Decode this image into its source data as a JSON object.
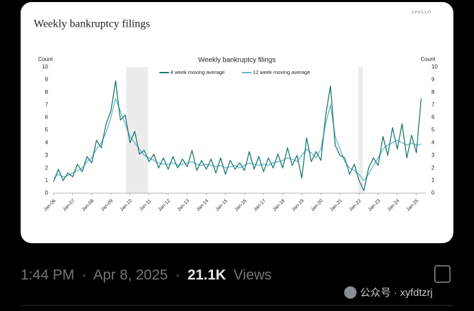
{
  "header": {
    "title": "Weekly bankruptcy filings",
    "brand": "APOLLO"
  },
  "chart_data": {
    "type": "line",
    "title": "Weekly bankruptcy filings",
    "ylabel": "Count",
    "y2label": "Count",
    "x": [
      2006,
      2006.25,
      2006.5,
      2006.75,
      2007,
      2007.25,
      2007.5,
      2007.75,
      2008,
      2008.25,
      2008.5,
      2008.75,
      2009,
      2009.25,
      2009.5,
      2009.75,
      2010,
      2010.25,
      2010.5,
      2010.75,
      2011,
      2011.25,
      2011.5,
      2011.75,
      2012,
      2012.25,
      2012.5,
      2012.75,
      2013,
      2013.25,
      2013.5,
      2013.75,
      2014,
      2014.25,
      2014.5,
      2014.75,
      2015,
      2015.25,
      2015.5,
      2015.75,
      2016,
      2016.25,
      2016.5,
      2016.75,
      2017,
      2017.25,
      2017.5,
      2017.75,
      2018,
      2018.25,
      2018.5,
      2018.75,
      2019,
      2019.25,
      2019.5,
      2019.75,
      2020,
      2020.25,
      2020.5,
      2020.75,
      2021,
      2021.25,
      2021.5,
      2021.75,
      2022,
      2022.25,
      2022.5,
      2022.75,
      2023,
      2023.25,
      2023.5,
      2023.75,
      2024,
      2024.25,
      2024.5,
      2024.75,
      2025,
      2025.25
    ],
    "series": [
      {
        "name": "4 week moving average",
        "color": "#17786b",
        "values": [
          0.9,
          1.9,
          1.0,
          1.6,
          1.3,
          2.3,
          1.7,
          2.9,
          2.4,
          4.2,
          3.6,
          5.5,
          6.5,
          8.9,
          5.8,
          6.2,
          4.0,
          4.9,
          3.1,
          3.4,
          2.5,
          3.1,
          2.0,
          2.8,
          1.9,
          2.9,
          2.0,
          2.7,
          2.1,
          3.4,
          1.8,
          2.6,
          1.9,
          2.7,
          1.6,
          2.8,
          1.5,
          2.6,
          1.9,
          2.4,
          1.8,
          3.3,
          1.9,
          2.9,
          1.7,
          2.8,
          2.0,
          3.1,
          2.0,
          3.6,
          2.2,
          3.0,
          1.2,
          4.4,
          2.5,
          3.3,
          2.6,
          6.2,
          8.5,
          3.8,
          3.0,
          2.8,
          1.5,
          2.3,
          1.0,
          0.2,
          2.0,
          2.8,
          2.2,
          4.5,
          3.0,
          5.2,
          3.5,
          5.5,
          2.8,
          4.6,
          3.2,
          7.5
        ]
      },
      {
        "name": "12 week moving average",
        "color": "#5fb6c9",
        "values": [
          1.2,
          1.5,
          1.3,
          1.4,
          1.6,
          1.8,
          2.0,
          2.5,
          2.8,
          3.5,
          4.0,
          4.8,
          6.0,
          7.5,
          6.5,
          5.5,
          4.5,
          4.0,
          3.5,
          3.0,
          2.8,
          2.6,
          2.4,
          2.3,
          2.3,
          2.4,
          2.2,
          2.3,
          2.4,
          2.5,
          2.3,
          2.2,
          2.3,
          2.2,
          2.1,
          2.2,
          2.0,
          2.1,
          2.2,
          2.0,
          2.2,
          2.4,
          2.3,
          2.2,
          2.3,
          2.2,
          2.4,
          2.5,
          2.6,
          2.8,
          2.7,
          2.5,
          3.0,
          3.5,
          3.2,
          2.8,
          3.5,
          5.5,
          7.0,
          4.5,
          3.5,
          2.5,
          2.0,
          1.8,
          1.5,
          1.0,
          1.5,
          2.2,
          2.8,
          3.5,
          3.8,
          4.0,
          4.2,
          4.0,
          3.8,
          4.0,
          3.8,
          3.9
        ]
      }
    ],
    "shaded_ranges": [
      [
        2009.8,
        2010.95
      ],
      [
        2021.95,
        2022.2
      ]
    ],
    "xlim": [
      2006,
      2025.5
    ],
    "xticks": [
      {
        "value": 2006,
        "label": "Jan-06"
      },
      {
        "value": 2007,
        "label": "Jan-07"
      },
      {
        "value": 2008,
        "label": "Jan-08"
      },
      {
        "value": 2009,
        "label": "Jan-09"
      },
      {
        "value": 2010,
        "label": "Jan-10"
      },
      {
        "value": 2011,
        "label": "Jan-11"
      },
      {
        "value": 2012,
        "label": "Jan-12"
      },
      {
        "value": 2013,
        "label": "Jan-13"
      },
      {
        "value": 2014,
        "label": "Jan-14"
      },
      {
        "value": 2015,
        "label": "Jan-15"
      },
      {
        "value": 2016,
        "label": "Jan-16"
      },
      {
        "value": 2017,
        "label": "Jan-17"
      },
      {
        "value": 2018,
        "label": "Jan-18"
      },
      {
        "value": 2019,
        "label": "Jan-19"
      },
      {
        "value": 2020,
        "label": "Jan-20"
      },
      {
        "value": 2021,
        "label": "Jan-21"
      },
      {
        "value": 2022,
        "label": "Jan-22"
      },
      {
        "value": 2023,
        "label": "Jan-23"
      },
      {
        "value": 2024,
        "label": "Jan-24"
      },
      {
        "value": 2025,
        "label": "Jan-25"
      }
    ],
    "ylim": [
      0,
      10
    ],
    "yticks": [
      0,
      1,
      2,
      3,
      4,
      5,
      6,
      7,
      8,
      9,
      10
    ],
    "y2lim": [
      0,
      10
    ],
    "y2ticks": [
      0,
      1,
      2,
      3,
      4,
      5,
      6,
      7,
      8,
      9,
      10
    ]
  },
  "tweet": {
    "time": "1:44 PM",
    "separator": "·",
    "date": "Apr 8, 2025",
    "views": "21.1K",
    "views_label": "Views"
  },
  "watermark": {
    "account": "公众号 · xyfdtzrj"
  }
}
